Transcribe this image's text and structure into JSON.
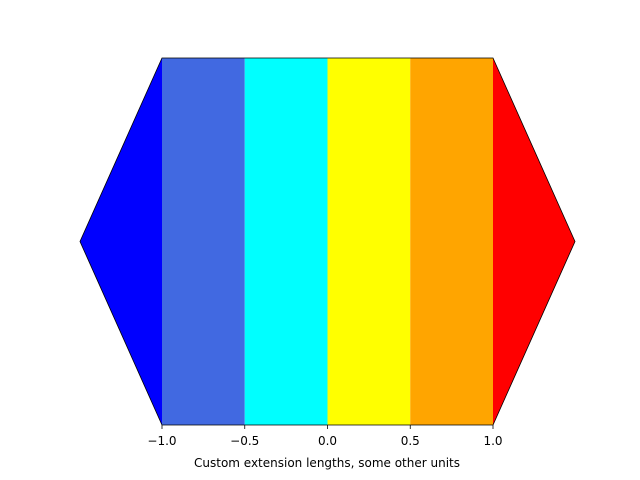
{
  "chart_data": {
    "type": "colorbar",
    "orientation": "horizontal",
    "boundaries": [
      -1.0,
      -0.5,
      0.0,
      0.5,
      1.0
    ],
    "segments": [
      {
        "from": -1.0,
        "to": -0.5,
        "color": "#4169e1"
      },
      {
        "from": -0.5,
        "to": 0.0,
        "color": "#00ffff"
      },
      {
        "from": 0.0,
        "to": 0.5,
        "color": "#ffff00"
      },
      {
        "from": 0.5,
        "to": 1.0,
        "color": "#ffa500"
      }
    ],
    "extend": {
      "min": {
        "color": "#0000ff",
        "shape": "triangle"
      },
      "max": {
        "color": "#ff0000",
        "shape": "triangle"
      }
    },
    "xlim": [
      -1.0,
      1.0
    ],
    "xticks": [
      -1.0,
      -0.5,
      0.0,
      0.5,
      1.0
    ],
    "xtick_labels": [
      "−1.0",
      "−0.5",
      "0.0",
      "0.5",
      "1.0"
    ],
    "xlabel": "Custom extension lengths, some other units"
  }
}
